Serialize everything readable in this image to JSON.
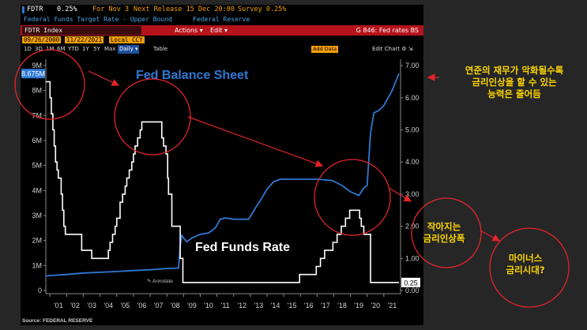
{
  "terminal": {
    "ticker": "FDTR",
    "last": "0.25%",
    "for_label": "For Nov 3",
    "next_release": "Next Release 15 Dec 20:00",
    "survey": "Survey 0.25%",
    "description": "Federal Funds Target Rate - Upper Bound",
    "source_name": "Federal Reserve",
    "security": "FDTR Index",
    "menu_a": "Actions",
    "menu_b": "Edit",
    "page_id": "G 846: Fed rates BS",
    "date_from": "09/26/2000",
    "date_to": "11/22/2021",
    "currency": "Local CCY",
    "periods": [
      "1D",
      "3D",
      "1M",
      "6M",
      "YTD",
      "1Y",
      "5Y",
      "Max"
    ],
    "frequency": "Daily",
    "table_btn": "Table",
    "add_data": "Add Data",
    "edit_chart": "Edit Chart",
    "annotate": "Annotate",
    "footer": "Source: FEDERAL RESERVE"
  },
  "annotations": {
    "top_right": [
      "연준의 재무가 악화될수록",
      "금리인상을 할 수 있는",
      "능력은 줄어듬"
    ],
    "middle": [
      "작아지는",
      "금리인상폭"
    ],
    "bottom": [
      "마이너스",
      "금리시대?"
    ]
  },
  "chart_data": {
    "type": "line",
    "title": "",
    "series": [
      {
        "name": "Fed Balance Sheet",
        "axis": "left",
        "unit": "M",
        "color": "#2f78d4",
        "last_value_label": "8.675M",
        "x": [
          2000.75,
          2001,
          2002,
          2003,
          2004,
          2005,
          2006,
          2007,
          2008.0,
          2008.7,
          2008.8,
          2008.9,
          2009.0,
          2009.2,
          2009.5,
          2010.0,
          2010.5,
          2010.9,
          2011.2,
          2011.5,
          2012.0,
          2012.5,
          2012.9,
          2013.3,
          2013.6,
          2014.0,
          2014.4,
          2014.8,
          2015,
          2016,
          2017,
          2017.9,
          2018.5,
          2019.0,
          2019.5,
          2019.8,
          2020.0,
          2020.2,
          2020.4,
          2020.7,
          2021.0,
          2021.5,
          2021.9
        ],
        "y": [
          0.58,
          0.6,
          0.64,
          0.7,
          0.73,
          0.76,
          0.8,
          0.83,
          0.88,
          0.9,
          1.8,
          2.2,
          2.1,
          1.95,
          2.1,
          2.25,
          2.3,
          2.5,
          2.85,
          2.9,
          2.85,
          2.85,
          2.85,
          3.3,
          3.6,
          4.05,
          4.35,
          4.45,
          4.45,
          4.45,
          4.45,
          4.4,
          4.2,
          3.95,
          3.8,
          4.1,
          4.2,
          6.3,
          7.1,
          7.2,
          7.4,
          8.0,
          8.675
        ]
      },
      {
        "name": "Fed Funds Rate",
        "axis": "right",
        "unit": "%",
        "color": "#ffffff",
        "last_value_label": "0.25",
        "x": [
          2000.75,
          2001.0,
          2001.08,
          2001.17,
          2001.25,
          2001.33,
          2001.42,
          2001.5,
          2001.67,
          2001.75,
          2001.83,
          2001.92,
          2002.9,
          2003.5,
          2004.5,
          2004.6,
          2004.75,
          2004.9,
          2005.0,
          2005.2,
          2005.35,
          2005.5,
          2005.6,
          2005.75,
          2005.9,
          2006.0,
          2006.1,
          2006.25,
          2006.4,
          2006.5,
          2007.7,
          2007.8,
          2007.95,
          2008.05,
          2008.1,
          2008.3,
          2008.8,
          2008.96,
          2015.95,
          2016.95,
          2017.2,
          2017.45,
          2017.95,
          2018.2,
          2018.45,
          2018.7,
          2018.95,
          2019.55,
          2019.65,
          2019.8,
          2020.2,
          2021.9
        ],
        "y": [
          6.5,
          6.0,
          5.5,
          5.0,
          4.5,
          4.0,
          3.75,
          3.5,
          3.0,
          2.5,
          2.0,
          1.75,
          1.25,
          1.0,
          1.25,
          1.5,
          1.75,
          2.0,
          2.25,
          2.75,
          3.0,
          3.25,
          3.5,
          3.75,
          4.0,
          4.25,
          4.5,
          4.75,
          5.0,
          5.25,
          4.75,
          4.5,
          4.25,
          3.5,
          3.0,
          2.0,
          1.0,
          0.25,
          0.5,
          0.75,
          1.0,
          1.25,
          1.5,
          1.75,
          2.0,
          2.25,
          2.5,
          2.25,
          2.0,
          1.75,
          0.25,
          0.25
        ]
      }
    ],
    "series_labels": [
      "Fed Balance Sheet",
      "Fed Funds Rate"
    ],
    "x_ticks": [
      "'01",
      "'02",
      "'03",
      "'04",
      "'05",
      "'06",
      "'07",
      "'08",
      "'09",
      "'10",
      "'11",
      "'12",
      "'13",
      "'14",
      "'15",
      "'16",
      "'17",
      "'18",
      "'19",
      "'20",
      "'21"
    ],
    "x_range": [
      2000.75,
      2022.0
    ],
    "left_axis": {
      "ticks": [
        "0",
        "1M",
        "2M",
        "3M",
        "4M",
        "5M",
        "6M",
        "7M",
        "8M",
        "9M"
      ],
      "range": [
        0,
        9.25
      ]
    },
    "right_axis": {
      "ticks": [
        "0.00",
        "1.00",
        "2.00",
        "3.00",
        "4.00",
        "5.00",
        "6.00",
        "7.00"
      ],
      "range": [
        0,
        7.2
      ]
    },
    "grid": false
  }
}
